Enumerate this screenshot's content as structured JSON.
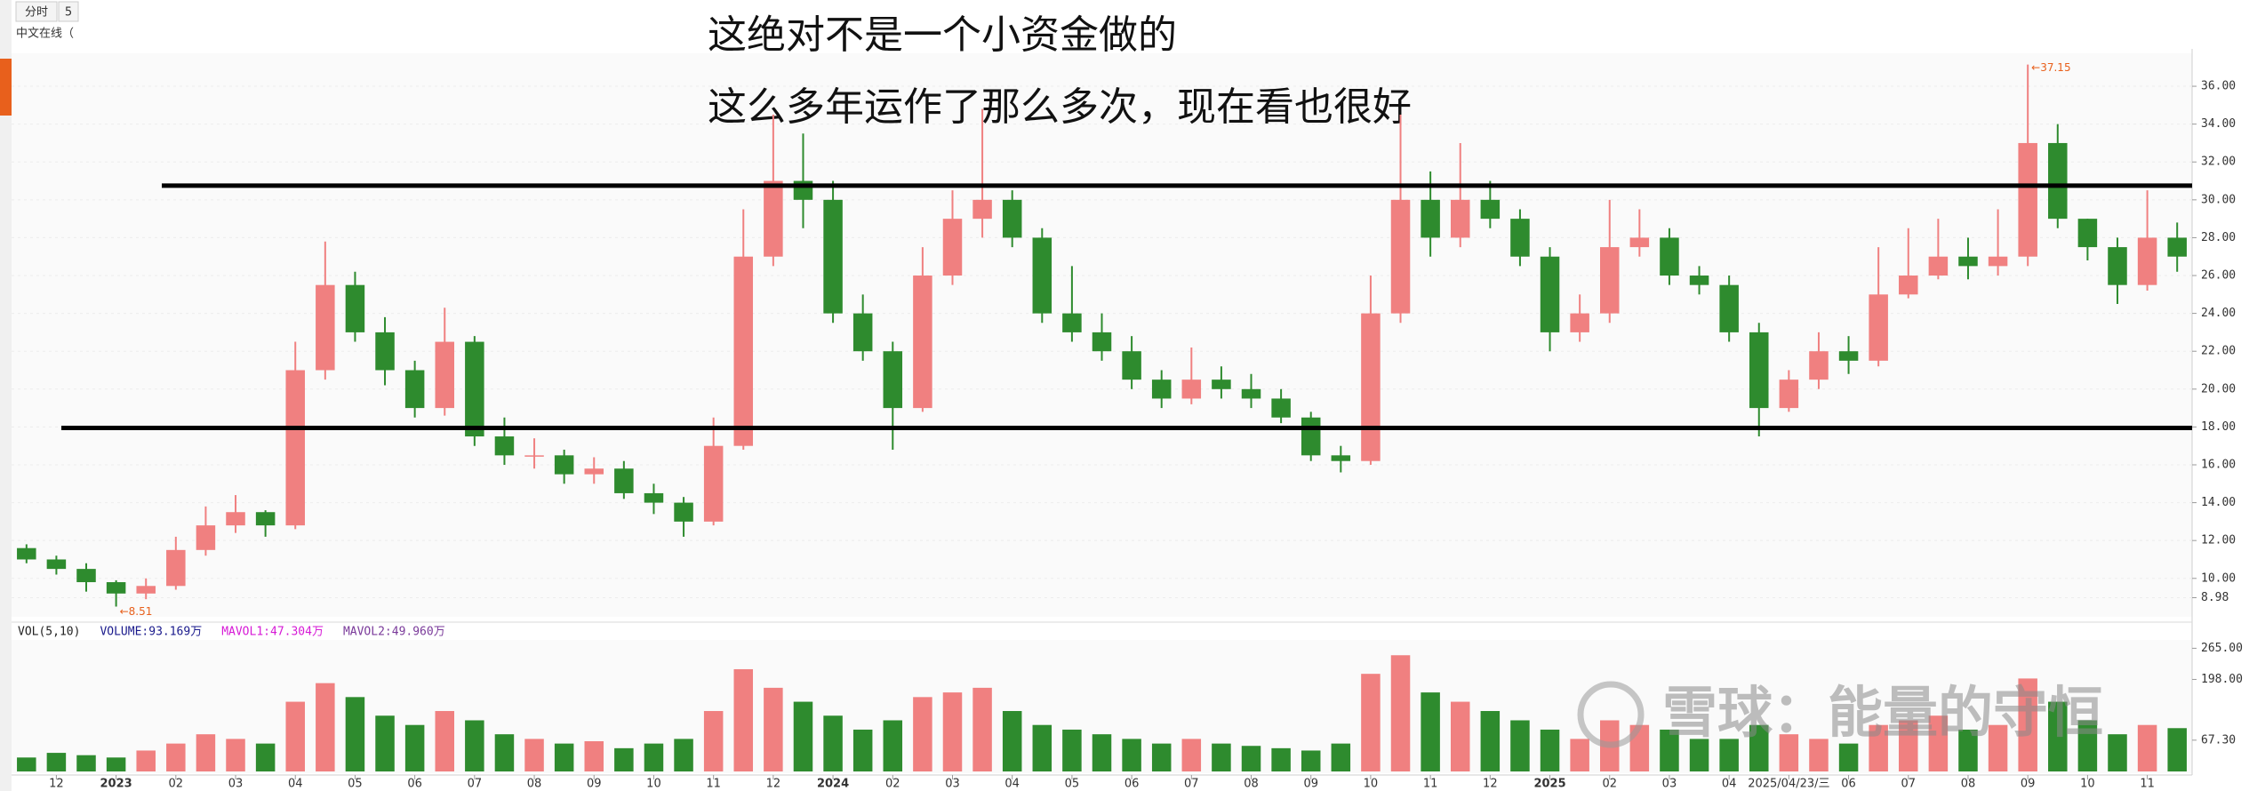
{
  "headline": [
    "这绝对不是一个小资金做的",
    "这么多年运作了那么多次，现在看也很好"
  ],
  "watermark": "雪球：能量的守恒",
  "sidebar": {
    "tabs": [
      "分时",
      "5"
    ],
    "stock_name": "中文在线（"
  },
  "chart_data": [
    {
      "type": "candlestick",
      "open": [
        11.6,
        11.0,
        10.5,
        9.8,
        9.2,
        9.6,
        11.5,
        12.8,
        13.5,
        12.8,
        21,
        25.5,
        23,
        21,
        19,
        22.5,
        17.5,
        16.5,
        16.5,
        15.5,
        15.8,
        14.5,
        14,
        13,
        17,
        27,
        31,
        30,
        24,
        22,
        19,
        26,
        29,
        30,
        28,
        24,
        23,
        22,
        20.5,
        19.5,
        20.5,
        20,
        19.5,
        18.5,
        16.5,
        16.2,
        24,
        30,
        28,
        30,
        29,
        27,
        23,
        24,
        27.5,
        28,
        26,
        25.5,
        23,
        19,
        20.5,
        22,
        21.5,
        25,
        26,
        27,
        26.5,
        27,
        33,
        29,
        27.5,
        25.5,
        28
      ],
      "high": [
        11.8,
        11.2,
        10.8,
        9.9,
        10.0,
        12.2,
        13.8,
        14.4,
        13.6,
        22.5,
        27.8,
        26.2,
        23.8,
        21.5,
        24.3,
        22.8,
        18.5,
        17.4,
        16.8,
        16.4,
        16.2,
        15.0,
        14.3,
        18.5,
        29.5,
        34.5,
        33.5,
        31.0,
        25.0,
        22.5,
        27.5,
        30.5,
        34.8,
        30.5,
        28.5,
        26.5,
        24.0,
        22.8,
        21.0,
        22.2,
        21.2,
        20.8,
        20.0,
        18.8,
        17.0,
        26.0,
        34.5,
        31.5,
        33.0,
        31.0,
        29.5,
        27.5,
        25.0,
        30.0,
        29.5,
        28.5,
        26.5,
        26.0,
        23.5,
        21.0,
        23.0,
        22.8,
        27.5,
        28.5,
        29.0,
        28.0,
        29.5,
        37.15,
        34.0,
        29.0,
        28.0,
        30.5,
        28.8
      ],
      "low": [
        10.8,
        10.2,
        9.3,
        8.51,
        8.9,
        9.4,
        11.2,
        12.4,
        12.2,
        12.6,
        20.5,
        22.5,
        20.2,
        18.5,
        18.6,
        17.0,
        16.0,
        15.8,
        15.0,
        15.0,
        14.2,
        13.4,
        12.2,
        12.8,
        16.8,
        26.5,
        28.5,
        23.5,
        21.5,
        16.8,
        18.8,
        25.5,
        28.0,
        27.5,
        23.5,
        22.5,
        21.5,
        20.0,
        19.0,
        19.2,
        19.5,
        19.0,
        18.2,
        16.2,
        15.6,
        16.0,
        23.5,
        27.0,
        27.5,
        28.5,
        26.5,
        22.0,
        22.5,
        23.5,
        27.0,
        25.5,
        25.0,
        22.5,
        17.5,
        18.8,
        20.0,
        20.8,
        21.2,
        24.8,
        25.8,
        25.8,
        26.0,
        26.5,
        28.5,
        26.8,
        24.5,
        25.2,
        26.2
      ],
      "close": [
        11.0,
        10.5,
        9.8,
        9.2,
        9.6,
        11.5,
        12.8,
        13.5,
        12.8,
        21,
        25.5,
        23,
        21,
        19,
        22.5,
        17.5,
        16.5,
        16.5,
        15.5,
        15.8,
        14.5,
        14,
        13,
        17,
        27,
        31,
        30,
        24,
        22,
        19,
        26,
        29,
        30,
        28,
        24,
        23,
        22,
        20.5,
        19.5,
        20.5,
        20,
        19.5,
        18.5,
        16.5,
        16.2,
        24,
        30,
        28,
        30,
        29,
        27,
        23,
        24,
        27.5,
        28,
        26,
        25.5,
        23,
        19,
        20.5,
        22,
        21.5,
        25,
        26,
        27,
        26.5,
        27,
        33,
        29,
        27.5,
        25.5,
        28,
        27
      ],
      "up_color": "#f08080",
      "down_color": "#2e8b2e",
      "ylim": [
        7.97,
        37.74
      ],
      "yticks": [
        {
          "value": 36,
          "label": "36.00"
        },
        {
          "value": 34,
          "label": "34.00"
        },
        {
          "value": 32,
          "label": "32.00"
        },
        {
          "value": 30,
          "label": "30.00"
        },
        {
          "value": 28,
          "label": "28.00"
        },
        {
          "value": 26,
          "label": "26.00"
        },
        {
          "value": 24,
          "label": "24.00"
        },
        {
          "value": 22,
          "label": "22.00"
        },
        {
          "value": 20,
          "label": "20.00"
        },
        {
          "value": 18,
          "label": "18.00"
        },
        {
          "value": 16,
          "label": "16.00"
        },
        {
          "value": 14,
          "label": "14.00"
        },
        {
          "value": 12,
          "label": "12.00"
        },
        {
          "value": 10,
          "label": "10.00"
        },
        8.98
      ],
      "grid": true,
      "hlines": [
        30.75,
        17.95
      ],
      "annotations": [
        {
          "text": "←37.15",
          "color": "#e8601c"
        },
        {
          "text": "←8.51",
          "color": "#e8601c"
        }
      ]
    },
    {
      "type": "bar",
      "legend": [
        {
          "text": "VOL(5,10)",
          "color": "#222222"
        },
        {
          "text": "VOLUME:93.169万",
          "color": "#1a1a8c"
        },
        {
          "text": "MAVOL1:47.304万",
          "color": "#d61ad6"
        },
        {
          "text": "MAVOL2:49.960万",
          "color": "#7a3a9a"
        }
      ],
      "categories": [
        null,
        "12",
        null,
        "2023",
        null,
        "02",
        null,
        "03",
        null,
        "04",
        null,
        "05",
        null,
        "06",
        null,
        "07",
        null,
        "08",
        null,
        "09",
        null,
        "10",
        null,
        "11",
        null,
        "12",
        null,
        "2024",
        null,
        "02",
        null,
        "03",
        null,
        "04",
        null,
        "05",
        null,
        "06",
        null,
        "07",
        null,
        "08",
        null,
        "09",
        null,
        "10",
        null,
        "11",
        null,
        "12",
        null,
        "2025",
        null,
        "02",
        null,
        "03",
        null,
        "04",
        null,
        "2025/04/23/三",
        null,
        "06",
        null,
        "07",
        null,
        "08",
        null,
        "09",
        null,
        "10",
        null,
        "11",
        null
      ],
      "values": [
        30,
        40,
        35,
        30,
        45,
        60,
        80,
        70,
        60,
        150,
        190,
        160,
        120,
        100,
        130,
        110,
        80,
        70,
        60,
        65,
        50,
        60,
        70,
        130,
        220,
        180,
        150,
        120,
        90,
        110,
        160,
        170,
        180,
        130,
        100,
        90,
        80,
        70,
        60,
        70,
        60,
        55,
        50,
        45,
        60,
        210,
        250,
        170,
        150,
        130,
        110,
        90,
        70,
        110,
        100,
        90,
        70,
        70,
        100,
        80,
        70,
        60,
        100,
        110,
        120,
        90,
        100,
        200,
        150,
        110,
        80,
        100,
        93.169
      ],
      "ylim": [
        0,
        283
      ],
      "yticks": [
        {
          "value": 265,
          "label": "265.00"
        },
        {
          "value": 198,
          "label": "198.00"
        },
        {
          "value": 67.3,
          "label": "67.30"
        }
      ]
    }
  ]
}
